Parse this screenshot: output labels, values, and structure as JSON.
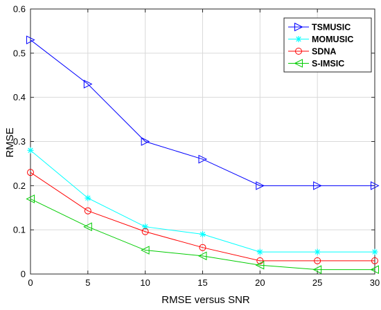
{
  "chart_data": {
    "type": "line",
    "title": "",
    "xlabel": "RMSE versus SNR",
    "ylabel": "RMSE",
    "xlim": [
      0,
      30
    ],
    "ylim": [
      0,
      0.6
    ],
    "xticks": [
      0,
      5,
      10,
      15,
      20,
      25,
      30
    ],
    "yticks": [
      0,
      0.1,
      0.2,
      0.3,
      0.4,
      0.5,
      0.6
    ],
    "xtick_labels": [
      "0",
      "5",
      "10",
      "15",
      "20",
      "25",
      "30"
    ],
    "ytick_labels": [
      "0",
      "0.1",
      "0.2",
      "0.3",
      "0.4",
      "0.5",
      "0.6"
    ],
    "grid": true,
    "legend_position": "top-right",
    "x": [
      0,
      5,
      10,
      15,
      20,
      25,
      30
    ],
    "series": [
      {
        "name": "TSMUSIC",
        "color": "#0000ff",
        "marker": "triangle-right",
        "values": [
          0.53,
          0.43,
          0.3,
          0.26,
          0.2,
          0.2,
          0.2
        ]
      },
      {
        "name": "MOMUSIC",
        "color": "#00ffff",
        "marker": "asterisk",
        "values": [
          0.28,
          0.172,
          0.107,
          0.09,
          0.05,
          0.05,
          0.05
        ]
      },
      {
        "name": "SDNA",
        "color": "#ff0000",
        "marker": "circle",
        "values": [
          0.23,
          0.143,
          0.096,
          0.06,
          0.03,
          0.03,
          0.03
        ]
      },
      {
        "name": "S-IMSIC",
        "color": "#00cc00",
        "marker": "triangle-left",
        "values": [
          0.17,
          0.107,
          0.054,
          0.041,
          0.02,
          0.01,
          0.01
        ]
      }
    ]
  }
}
